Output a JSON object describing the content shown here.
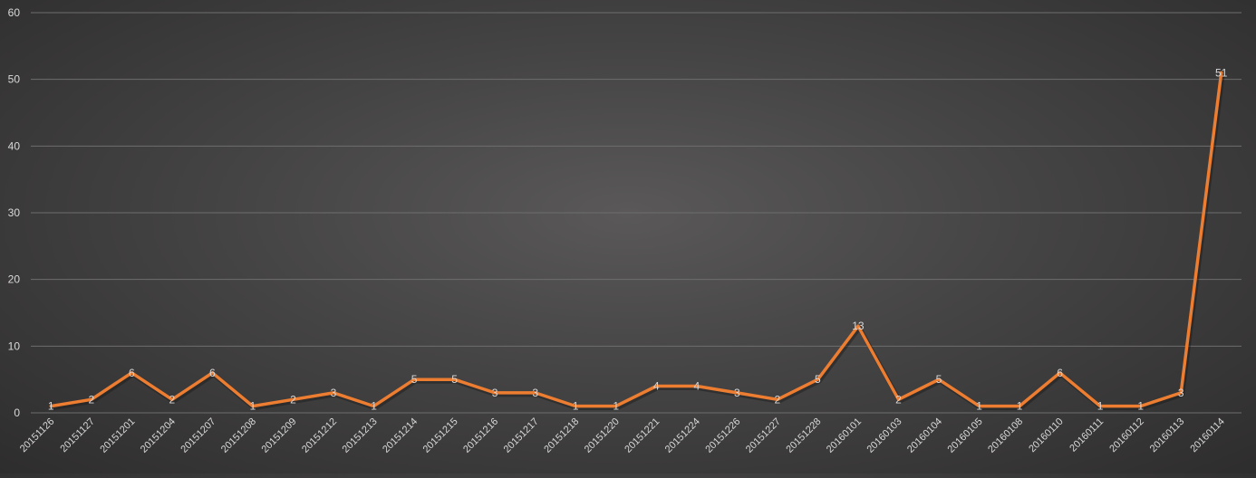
{
  "chart_data": {
    "type": "line",
    "title": "",
    "xlabel": "",
    "ylabel": "",
    "ylim": [
      0,
      60
    ],
    "yticks": [
      0,
      10,
      20,
      30,
      40,
      50,
      60
    ],
    "grid": true,
    "line_color": "#ED7D31",
    "label_color": "#D9D9D9",
    "gridline_color": "#6E6E6E",
    "categories": [
      "20151126",
      "20151127",
      "20151201",
      "20151204",
      "20151207",
      "20151208",
      "20151209",
      "20151212",
      "20151213",
      "20151214",
      "20151215",
      "20151216",
      "20151217",
      "20151218",
      "20151220",
      "20151221",
      "20151224",
      "20151226",
      "20151227",
      "20151228",
      "20160101",
      "20160103",
      "20160104",
      "20160105",
      "20160108",
      "20160110",
      "20160111",
      "20160112",
      "20160113",
      "20160114"
    ],
    "values": [
      1,
      2,
      6,
      2,
      6,
      1,
      2,
      3,
      1,
      5,
      5,
      3,
      3,
      1,
      1,
      4,
      4,
      3,
      2,
      5,
      13,
      2,
      5,
      1,
      1,
      6,
      1,
      1,
      3,
      51
    ]
  }
}
